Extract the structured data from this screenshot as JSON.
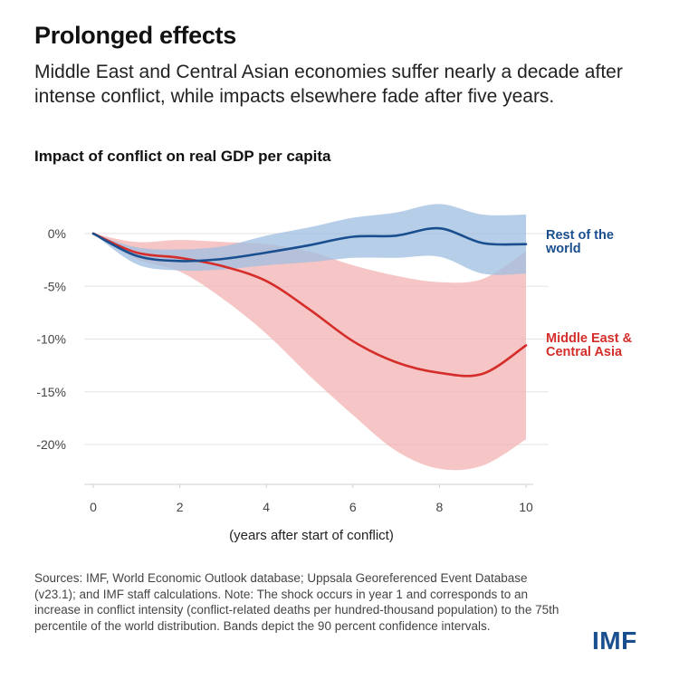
{
  "header": {
    "title": "Prolonged effects",
    "subtitle": "Middle East and Central Asian economies suffer nearly a decade after intense conflict, while impacts elsewhere fade after five years."
  },
  "chart_data": {
    "type": "line",
    "title": "Impact of conflict on real GDP per capita",
    "xlabel": "(years after start of conflict)",
    "ylabel": "",
    "xlim": [
      0,
      10
    ],
    "ylim": [
      -22,
      2
    ],
    "x_ticks": [
      0,
      2,
      4,
      6,
      8,
      10
    ],
    "x_tick_labels": [
      "0",
      "2",
      "4",
      "6",
      "8",
      "10"
    ],
    "y_ticks": [
      0,
      -5,
      -10,
      -15,
      -20
    ],
    "y_tick_labels": [
      "0%",
      "-5%",
      "-10%",
      "-15%",
      "-20%"
    ],
    "grid": "horizontal",
    "x": [
      0,
      1,
      2,
      3,
      4,
      5,
      6,
      7,
      8,
      9,
      10
    ],
    "series": [
      {
        "name": "Middle East & Central Asia",
        "color": "#d42d2a",
        "band_color": "#f2b3b1",
        "values": [
          0,
          -1.8,
          -2.3,
          -3.1,
          -4.5,
          -7.2,
          -10.2,
          -12.2,
          -13.2,
          -13.3,
          -10.6
        ],
        "lower": [
          0,
          -2.4,
          -3.6,
          -6.2,
          -9.5,
          -13.5,
          -17.2,
          -20.6,
          -22.3,
          -22.0,
          -19.5
        ],
        "upper": [
          0,
          -0.8,
          -0.6,
          -0.8,
          -1.0,
          -1.7,
          -3.0,
          -4.0,
          -4.6,
          -4.3,
          -1.7
        ]
      },
      {
        "name": "Rest of the world",
        "color": "#1a4f8f",
        "band_color": "#9fbde0",
        "values": [
          0,
          -2.1,
          -2.6,
          -2.4,
          -1.8,
          -1.1,
          -0.3,
          -0.2,
          0.5,
          -0.9,
          -1.0
        ],
        "lower": [
          0,
          -2.9,
          -3.5,
          -3.4,
          -3.0,
          -2.7,
          -2.3,
          -2.3,
          -2.2,
          -3.8,
          -3.8
        ],
        "upper": [
          0,
          -1.3,
          -1.5,
          -1.2,
          -0.2,
          0.6,
          1.5,
          2.0,
          2.8,
          1.8,
          1.8
        ]
      }
    ]
  },
  "labels": {
    "row": [
      "Rest of the",
      "world"
    ],
    "mec": [
      "Middle East &",
      "Central Asia"
    ]
  },
  "note": "Sources: IMF, World Economic Outlook database; Uppsala Georeferenced Event Database (v23.1); and IMF staff calculations. Note: The shock occurs in year 1 and corresponds to an increase in conflict intensity (conflict-related deaths per hundred-thousand population) to the 75th percentile of the world distribution. Bands depict the 90 percent confidence intervals.",
  "logo": "IMF"
}
